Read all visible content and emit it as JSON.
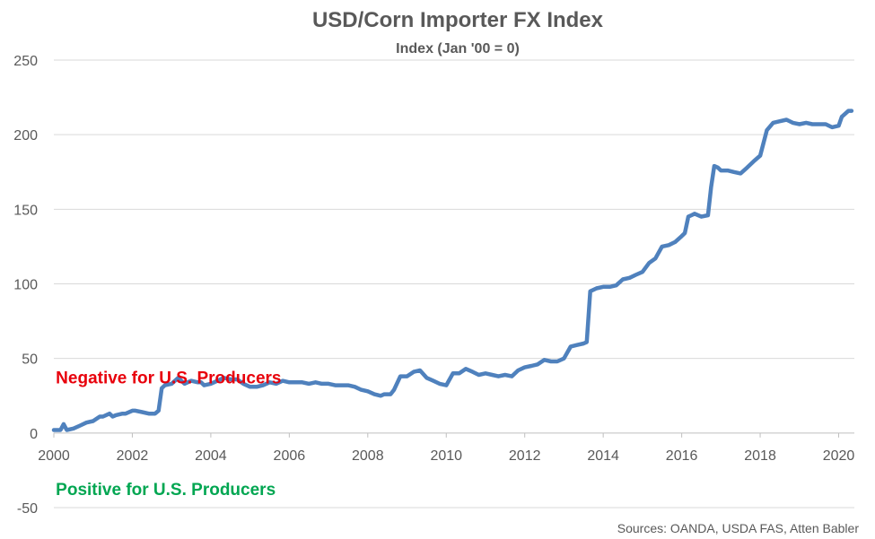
{
  "chart_data": {
    "type": "line",
    "title": "USD/Corn Importer FX Index",
    "subtitle": "Index (Jan '00 = 0)",
    "xlabel": "",
    "ylabel": "",
    "xlim": [
      2000,
      2020.4
    ],
    "ylim": [
      -50,
      250
    ],
    "y_ticks": [
      -50,
      0,
      50,
      100,
      150,
      200,
      250
    ],
    "x_ticks": [
      2000,
      2002,
      2004,
      2006,
      2008,
      2010,
      2012,
      2014,
      2016,
      2018,
      2020
    ],
    "grid": "horizontal",
    "line_color": "#4F81BD",
    "series": [
      {
        "x": [
          2000.0,
          2000.17,
          2000.25,
          2000.33,
          2000.5,
          2000.67,
          2000.83,
          2001.0,
          2001.17,
          2001.25,
          2001.42,
          2001.5,
          2001.58,
          2001.75,
          2001.83,
          2002.0,
          2002.08,
          2002.25,
          2002.42,
          2002.58,
          2002.67,
          2002.75,
          2002.83,
          2003.0,
          2003.17,
          2003.25,
          2003.33,
          2003.5,
          2003.67,
          2003.75,
          2003.83,
          2004.0,
          2004.17,
          2004.33,
          2004.5,
          2004.67,
          2004.83,
          2005.0,
          2005.17,
          2005.33,
          2005.5,
          2005.67,
          2005.83,
          2006.0,
          2006.17,
          2006.33,
          2006.5,
          2006.67,
          2006.83,
          2007.0,
          2007.17,
          2007.33,
          2007.5,
          2007.67,
          2007.83,
          2008.0,
          2008.17,
          2008.33,
          2008.42,
          2008.58,
          2008.67,
          2008.83,
          2009.0,
          2009.17,
          2009.33,
          2009.5,
          2009.67,
          2009.83,
          2010.0,
          2010.17,
          2010.33,
          2010.5,
          2010.67,
          2010.83,
          2011.0,
          2011.17,
          2011.33,
          2011.5,
          2011.67,
          2011.83,
          2012.0,
          2012.17,
          2012.33,
          2012.5,
          2012.67,
          2012.83,
          2013.0,
          2013.17,
          2013.33,
          2013.5,
          2013.58,
          2013.67,
          2013.83,
          2014.0,
          2014.17,
          2014.33,
          2014.5,
          2014.67,
          2014.83,
          2015.0,
          2015.17,
          2015.33,
          2015.5,
          2015.67,
          2015.83,
          2016.0,
          2016.08,
          2016.17,
          2016.25,
          2016.33,
          2016.5,
          2016.67,
          2016.75,
          2016.83,
          2016.92,
          2017.0,
          2017.17,
          2017.33,
          2017.5,
          2017.67,
          2017.83,
          2018.0,
          2018.17,
          2018.33,
          2018.5,
          2018.67,
          2018.83,
          2019.0,
          2019.17,
          2019.33,
          2019.5,
          2019.67,
          2019.83,
          2020.0,
          2020.08,
          2020.25,
          2020.33
        ],
        "values": [
          2,
          2,
          6,
          2,
          3,
          5,
          7,
          8,
          11,
          11,
          13,
          11,
          12,
          13,
          13,
          15,
          15,
          14,
          13,
          13,
          15,
          30,
          32,
          33,
          37,
          35,
          33,
          35,
          34,
          34,
          32,
          33,
          35,
          37,
          36,
          36,
          33,
          31,
          31,
          32,
          34,
          33,
          35,
          34,
          34,
          34,
          33,
          34,
          33,
          33,
          32,
          32,
          32,
          31,
          29,
          28,
          26,
          25,
          26,
          26,
          29,
          38,
          38,
          41,
          42,
          37,
          35,
          33,
          32,
          40,
          40,
          43,
          41,
          39,
          40,
          39,
          38,
          39,
          38,
          42,
          44,
          45,
          46,
          49,
          48,
          48,
          50,
          58,
          59,
          60,
          61,
          95,
          97,
          98,
          98,
          99,
          103,
          104,
          106,
          108,
          114,
          117,
          125,
          126,
          128,
          132,
          134,
          145,
          146,
          147,
          145,
          146,
          165,
          179,
          178,
          176,
          176,
          175,
          174,
          178,
          182,
          186,
          203,
          208,
          209,
          210,
          208,
          207,
          208,
          207,
          207,
          207,
          205,
          206,
          212,
          216,
          216
        ]
      }
    ],
    "annotations": [
      {
        "text": "Negative for U.S. Producers",
        "color": "#E8000B",
        "x": 2000.05,
        "y": 37.5
      },
      {
        "text": "Positive for U.S. Producers",
        "color": "#00A651",
        "x": 2000.05,
        "y": -37.5
      }
    ],
    "source": "Sources: OANDA, USDA FAS, Atten Babler"
  }
}
